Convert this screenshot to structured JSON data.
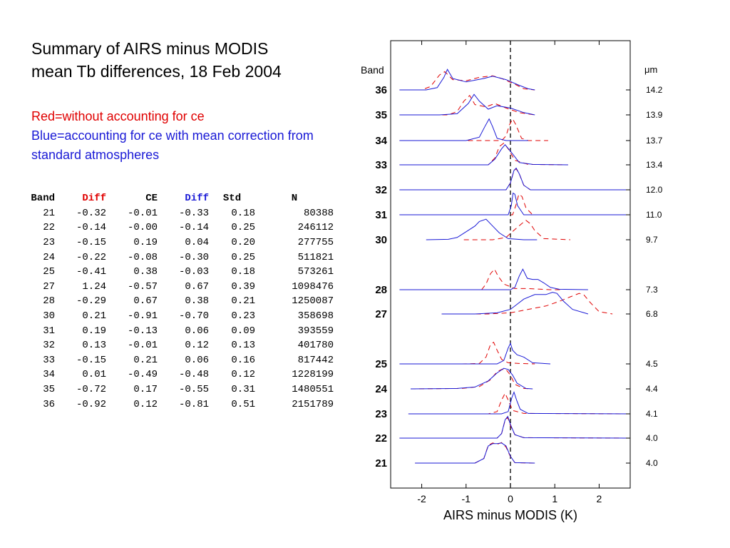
{
  "title_line1": "Summary of AIRS minus MODIS",
  "title_line2": "mean Tb differences, 18 Feb 2004",
  "note_red": "Red=without accounting for ce",
  "note_blue": "Blue=accounting for ce with mean correction from standard atmospheres",
  "colors": {
    "red": "#e00000",
    "blue": "#1a1ad6"
  },
  "table": {
    "headers": [
      "Band",
      "Diff",
      "CE",
      "Diff",
      "Std",
      "N"
    ],
    "rows": [
      [
        "21",
        "-0.32",
        "-0.01",
        "-0.33",
        "0.18",
        "80388"
      ],
      [
        "22",
        "-0.14",
        "-0.00",
        "-0.14",
        "0.25",
        "246112"
      ],
      [
        "23",
        "-0.15",
        "0.19",
        "0.04",
        "0.20",
        "277755"
      ],
      [
        "24",
        "-0.22",
        "-0.08",
        "-0.30",
        "0.25",
        "511821"
      ],
      [
        "25",
        "-0.41",
        "0.38",
        "-0.03",
        "0.18",
        "573261"
      ],
      [
        "27",
        "1.24",
        "-0.57",
        "0.67",
        "0.39",
        "1098476"
      ],
      [
        "28",
        "-0.29",
        "0.67",
        "0.38",
        "0.21",
        "1250087"
      ],
      [
        "30",
        "0.21",
        "-0.91",
        "-0.70",
        "0.23",
        "358698"
      ],
      [
        "31",
        "0.19",
        "-0.13",
        "0.06",
        "0.09",
        "393559"
      ],
      [
        "32",
        "0.13",
        "-0.01",
        "0.12",
        "0.13",
        "401780"
      ],
      [
        "33",
        "-0.15",
        "0.21",
        "0.06",
        "0.16",
        "817442"
      ],
      [
        "34",
        "0.01",
        "-0.49",
        "-0.48",
        "0.12",
        "1228199"
      ],
      [
        "35",
        "-0.72",
        "0.17",
        "-0.55",
        "0.31",
        "1480551"
      ],
      [
        "36",
        "-0.92",
        "0.12",
        "-0.81",
        "0.51",
        "2151789"
      ]
    ]
  },
  "chart_data": {
    "type": "line",
    "xlabel": "AIRS minus MODIS (K)",
    "band_label": "Band",
    "unit_label": "μm",
    "xlim": [
      -2.7,
      2.7
    ],
    "xticks": [
      -2,
      -1,
      0,
      1,
      2
    ],
    "zero_line": 0,
    "grid": false,
    "bands": [
      {
        "band": "36",
        "wavelength": "14.2",
        "blue": {
          "x": [
            -2.5,
            -1.9,
            -1.65,
            -1.5,
            -1.42,
            -1.3,
            -1.0,
            -0.6,
            -0.4,
            -0.1,
            0.2,
            0.4,
            0.55
          ],
          "y": [
            0,
            0,
            0.1,
            0.55,
            0.9,
            0.5,
            0.35,
            0.5,
            0.6,
            0.45,
            0.2,
            0.05,
            0
          ]
        },
        "red": {
          "x": [
            -2.5,
            -2.0,
            -1.8,
            -1.6,
            -1.48,
            -1.3,
            -1.0,
            -0.7,
            -0.4,
            -0.2,
            0.1,
            0.3,
            0.55
          ],
          "y": [
            0,
            0,
            0.15,
            0.65,
            0.8,
            0.45,
            0.4,
            0.55,
            0.62,
            0.5,
            0.25,
            0.05,
            0
          ]
        }
      },
      {
        "band": "35",
        "wavelength": "13.9",
        "blue": {
          "x": [
            -2.5,
            -1.6,
            -1.2,
            -0.95,
            -0.82,
            -0.7,
            -0.5,
            -0.3,
            0.0,
            0.3,
            0.55
          ],
          "y": [
            0,
            0,
            0.05,
            0.5,
            0.9,
            0.6,
            0.25,
            0.4,
            0.3,
            0.1,
            0
          ]
        },
        "red": {
          "x": [
            -2.5,
            -1.4,
            -1.2,
            -1.05,
            -0.92,
            -0.8,
            -0.55,
            -0.35,
            -0.1,
            0.2,
            0.55
          ],
          "y": [
            0,
            0,
            0.15,
            0.6,
            0.85,
            0.45,
            0.35,
            0.5,
            0.3,
            0.1,
            0
          ]
        }
      },
      {
        "band": "34",
        "wavelength": "13.7",
        "blue": {
          "x": [
            -2.5,
            -1.0,
            -0.7,
            -0.58,
            -0.48,
            -0.4,
            -0.3,
            -0.1,
            0.4
          ],
          "y": [
            0,
            0,
            0.15,
            0.6,
            0.95,
            0.6,
            0.1,
            0,
            0
          ]
        },
        "red": {
          "x": [
            -2.5,
            -0.2,
            -0.1,
            -0.02,
            0.05,
            0.12,
            0.25,
            0.4,
            0.85
          ],
          "y": [
            0,
            0,
            0.2,
            0.7,
            0.95,
            0.7,
            0.1,
            0,
            0
          ]
        }
      },
      {
        "band": "33",
        "wavelength": "13.4",
        "blue": {
          "x": [
            -2.5,
            -0.5,
            -0.35,
            -0.2,
            -0.12,
            0.0,
            0.2,
            0.5,
            1.3
          ],
          "y": [
            0,
            0,
            0.25,
            0.7,
            0.88,
            0.6,
            0.1,
            0.02,
            0
          ]
        },
        "red": {
          "x": [
            -2.5,
            -0.5,
            -0.35,
            -0.25,
            -0.15,
            -0.05,
            0.1,
            0.4,
            1.3
          ],
          "y": [
            0,
            0,
            0.3,
            0.8,
            0.95,
            0.7,
            0.2,
            0.02,
            0
          ]
        }
      },
      {
        "band": "32",
        "wavelength": "12.0",
        "blue": {
          "x": [
            -2.5,
            -0.1,
            0.0,
            0.08,
            0.13,
            0.2,
            0.3,
            0.45,
            2.7
          ],
          "y": [
            0,
            0,
            0.3,
            0.85,
            0.95,
            0.7,
            0.2,
            0,
            0
          ]
        },
        "red": {
          "x": [
            -2.5,
            -0.1,
            0.0,
            0.08,
            0.13,
            0.2,
            0.3,
            0.45,
            2.7
          ],
          "y": [
            0,
            0,
            0.3,
            0.85,
            0.92,
            0.7,
            0.2,
            0,
            0
          ]
        }
      },
      {
        "band": "31",
        "wavelength": "11.0",
        "blue": {
          "x": [
            -2.5,
            -0.05,
            0.02,
            0.06,
            0.1,
            0.16,
            0.3,
            2.7
          ],
          "y": [
            0,
            0,
            0.4,
            0.95,
            0.9,
            0.4,
            0,
            0
          ]
        },
        "red": {
          "x": [
            -2.5,
            0.05,
            0.12,
            0.19,
            0.26,
            0.35,
            0.5,
            2.7
          ],
          "y": [
            0,
            0,
            0.4,
            0.9,
            0.8,
            0.3,
            0,
            0
          ]
        }
      },
      {
        "band": "30",
        "wavelength": "9.7",
        "blue": {
          "x": [
            -1.9,
            -1.4,
            -1.2,
            -1.0,
            -0.8,
            -0.7,
            -0.55,
            -0.4,
            -0.25,
            -0.05,
            0.3,
            0.6
          ],
          "y": [
            0,
            0.02,
            0.1,
            0.35,
            0.6,
            0.8,
            0.9,
            0.6,
            0.3,
            0.05,
            0,
            0
          ]
        },
        "red": {
          "x": [
            -1.05,
            -0.4,
            -0.1,
            0.1,
            0.25,
            0.35,
            0.45,
            0.55,
            0.75,
            1.35
          ],
          "y": [
            0,
            0,
            0.1,
            0.45,
            0.7,
            0.85,
            0.7,
            0.4,
            0.05,
            0
          ]
        }
      },
      {
        "band": "28",
        "wavelength": "7.3",
        "blue": {
          "x": [
            -2.5,
            0.0,
            0.1,
            0.2,
            0.28,
            0.38,
            0.5,
            0.62,
            0.75,
            0.9,
            1.1,
            1.75
          ],
          "y": [
            0,
            0,
            0.1,
            0.6,
            0.9,
            0.5,
            0.45,
            0.45,
            0.3,
            0.1,
            0.02,
            0
          ]
        },
        "red": {
          "x": [
            -0.65,
            -0.55,
            -0.45,
            -0.36,
            -0.28,
            -0.15,
            0.1,
            0.4,
            0.7,
            0.9,
            1.15
          ],
          "y": [
            0,
            0.25,
            0.7,
            0.9,
            0.6,
            0.25,
            0.05,
            0.05,
            0.02,
            0,
            0
          ]
        }
      },
      {
        "band": "27",
        "wavelength": "6.8",
        "blue": {
          "x": [
            -1.55,
            -0.8,
            -0.3,
            0.0,
            0.3,
            0.55,
            0.8,
            0.95,
            1.05,
            1.2,
            1.4,
            1.75
          ],
          "y": [
            0,
            0,
            0.05,
            0.2,
            0.65,
            0.85,
            0.85,
            0.95,
            0.9,
            0.55,
            0.2,
            0
          ]
        },
        "red": {
          "x": [
            -1.55,
            -0.5,
            0.0,
            0.4,
            0.8,
            1.1,
            1.35,
            1.55,
            1.65,
            1.8,
            2.0,
            2.3
          ],
          "y": [
            0,
            0,
            0.05,
            0.2,
            0.35,
            0.55,
            0.75,
            0.9,
            0.85,
            0.5,
            0.1,
            0
          ]
        }
      },
      {
        "band": "25",
        "wavelength": "4.5",
        "blue": {
          "x": [
            -2.5,
            -0.3,
            -0.15,
            -0.05,
            0.0,
            0.05,
            0.15,
            0.3,
            0.5,
            0.9
          ],
          "y": [
            0,
            0,
            0.15,
            0.7,
            0.9,
            0.6,
            0.4,
            0.3,
            0.05,
            0
          ]
        },
        "red": {
          "x": [
            -1.1,
            -0.7,
            -0.55,
            -0.45,
            -0.38,
            -0.3,
            -0.2,
            -0.05,
            0.2,
            0.55
          ],
          "y": [
            0,
            0.02,
            0.3,
            0.85,
            0.95,
            0.6,
            0.2,
            0.05,
            0.02,
            0
          ]
        }
      },
      {
        "band": "24",
        "wavelength": "4.4",
        "blue": {
          "x": [
            -2.25,
            -1.2,
            -0.8,
            -0.5,
            -0.3,
            -0.15,
            -0.05,
            0.05,
            0.15,
            0.35,
            0.5
          ],
          "y": [
            0,
            0.02,
            0.08,
            0.35,
            0.7,
            0.9,
            0.85,
            0.6,
            0.25,
            0.02,
            0
          ]
        },
        "red": {
          "x": [
            -2.25,
            -1.1,
            -0.7,
            -0.45,
            -0.3,
            -0.2,
            -0.1,
            0.0,
            0.1,
            0.3,
            0.5
          ],
          "y": [
            0,
            0.02,
            0.1,
            0.4,
            0.75,
            0.85,
            0.85,
            0.6,
            0.2,
            0.02,
            0
          ]
        }
      },
      {
        "band": "23",
        "wavelength": "4.1",
        "blue": {
          "x": [
            -2.3,
            -0.2,
            -0.05,
            0.03,
            0.08,
            0.14,
            0.22,
            0.4,
            2.7
          ],
          "y": [
            0,
            0,
            0.1,
            0.7,
            0.95,
            0.6,
            0.2,
            0.02,
            0
          ]
        },
        "red": {
          "x": [
            -2.3,
            -0.5,
            -0.3,
            -0.2,
            -0.12,
            -0.05,
            0.05,
            0.3,
            2.7
          ],
          "y": [
            0,
            0,
            0.1,
            0.6,
            0.9,
            0.6,
            0.15,
            0.02,
            0
          ]
        }
      },
      {
        "band": "22",
        "wavelength": "4.0",
        "blue": {
          "x": [
            -2.5,
            -0.3,
            -0.2,
            -0.12,
            -0.06,
            0.0,
            0.1,
            0.3,
            2.7
          ],
          "y": [
            0,
            0,
            0.2,
            0.8,
            0.95,
            0.6,
            0.15,
            0.02,
            0
          ]
        },
        "red": {
          "x": [
            -2.5,
            -0.3,
            -0.2,
            -0.12,
            -0.06,
            0.0,
            0.1,
            0.3,
            2.7
          ],
          "y": [
            0,
            0,
            0.2,
            0.78,
            0.9,
            0.55,
            0.15,
            0.02,
            0
          ]
        }
      },
      {
        "band": "21",
        "wavelength": "4.0",
        "blue": {
          "x": [
            -2.15,
            -0.8,
            -0.6,
            -0.5,
            -0.4,
            -0.3,
            -0.2,
            -0.1,
            0.0,
            0.1,
            0.55
          ],
          "y": [
            0,
            0,
            0.2,
            0.75,
            0.85,
            0.85,
            0.88,
            0.75,
            0.3,
            0.02,
            0
          ]
        },
        "red": {
          "x": [
            -2.15,
            -0.8,
            -0.6,
            -0.5,
            -0.4,
            -0.3,
            -0.2,
            -0.1,
            0.0,
            0.1,
            0.55
          ],
          "y": [
            0,
            0,
            0.2,
            0.78,
            0.88,
            0.82,
            0.9,
            0.7,
            0.28,
            0.02,
            0
          ]
        }
      }
    ]
  }
}
